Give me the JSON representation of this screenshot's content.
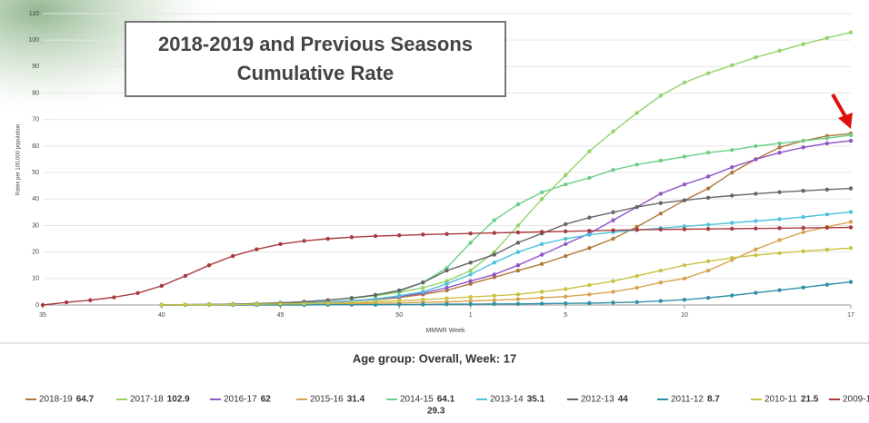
{
  "chart_data": {
    "type": "line",
    "title": [
      "2018-2019 and Previous Seasons",
      "Cumulative Rate"
    ],
    "subtitle": "Age group: Overall, Week: 17",
    "x_label": "MMWR Week",
    "y_label": "Rates per 100,000 population",
    "categories": [
      "35",
      null,
      null,
      null,
      null,
      "40",
      null,
      null,
      null,
      null,
      "45",
      null,
      null,
      null,
      null,
      "50",
      null,
      null,
      "1",
      null,
      null,
      null,
      "5",
      null,
      null,
      null,
      null,
      "10",
      null,
      null,
      null,
      null,
      null,
      null,
      "17"
    ],
    "ylim": [
      0,
      110
    ],
    "yticks": [
      0,
      10,
      20,
      30,
      40,
      50,
      60,
      70,
      80,
      90,
      100,
      110
    ],
    "grid": true,
    "series": [
      {
        "name": "2018-19",
        "color": "#b0783a",
        "values": [
          null,
          null,
          null,
          null,
          null,
          0,
          0.1,
          0.2,
          0.3,
          0.4,
          0.6,
          0.8,
          1.1,
          1.5,
          2,
          2.8,
          4,
          5.5,
          8,
          10.5,
          13,
          15.5,
          18.5,
          21.5,
          25,
          29.5,
          34.5,
          39.5,
          44,
          50,
          55,
          59.5,
          62,
          63.8,
          64.7
        ]
      },
      {
        "name": "2017-18",
        "color": "#94d46a",
        "values": [
          null,
          null,
          null,
          null,
          null,
          0,
          0.1,
          0.2,
          0.3,
          0.5,
          0.8,
          1.2,
          1.8,
          2.6,
          3.5,
          4.8,
          6.5,
          9,
          13,
          20,
          30,
          40,
          49,
          58,
          65.5,
          72.5,
          79,
          84,
          87.5,
          90.5,
          93.5,
          96,
          98.5,
          100.8,
          102.9
        ]
      },
      {
        "name": "2016-17",
        "color": "#9055c8",
        "values": [
          null,
          null,
          null,
          null,
          null,
          0,
          0.1,
          0.2,
          0.3,
          0.4,
          0.6,
          0.8,
          1.1,
          1.6,
          2.3,
          3.2,
          4.5,
          6.5,
          9,
          11.5,
          15,
          19,
          23,
          27,
          32,
          37,
          42,
          45.5,
          48.5,
          52,
          55,
          57.5,
          59.5,
          61,
          62
        ]
      },
      {
        "name": "2015-16",
        "color": "#d9a24e",
        "values": [
          null,
          null,
          null,
          null,
          null,
          0,
          0,
          0.1,
          0.1,
          0.2,
          0.2,
          0.3,
          0.4,
          0.5,
          0.6,
          0.8,
          1,
          1.2,
          1.5,
          1.8,
          2.2,
          2.7,
          3.2,
          4,
          5,
          6.5,
          8.5,
          10,
          13,
          17,
          21,
          24.5,
          27.5,
          29.5,
          31.4
        ]
      },
      {
        "name": "2014-15",
        "color": "#6dcf8a",
        "values": [
          null,
          null,
          null,
          null,
          null,
          0,
          0.1,
          0.2,
          0.3,
          0.5,
          0.8,
          1.2,
          1.8,
          2.7,
          3.8,
          5.2,
          8.5,
          14,
          23.5,
          32,
          38,
          42.5,
          45.5,
          48,
          51,
          53,
          54.5,
          56,
          57.5,
          58.5,
          60,
          61,
          62,
          63,
          64.1
        ]
      },
      {
        "name": "2013-14",
        "color": "#4cc3da",
        "values": [
          null,
          null,
          null,
          null,
          null,
          0,
          0.1,
          0.2,
          0.3,
          0.4,
          0.6,
          0.8,
          1,
          1.5,
          2.3,
          3.5,
          5,
          8,
          11.5,
          16,
          20,
          23,
          25,
          26.5,
          27.5,
          28.3,
          29,
          29.7,
          30.3,
          31,
          31.7,
          32.4,
          33.2,
          34.2,
          35.1
        ]
      },
      {
        "name": "2012-13",
        "color": "#666666",
        "values": [
          null,
          null,
          null,
          null,
          null,
          0,
          0.1,
          0.2,
          0.3,
          0.5,
          0.8,
          1.2,
          1.8,
          2.6,
          3.8,
          5.5,
          8.5,
          13,
          16,
          19,
          23.5,
          27,
          30.5,
          33,
          35,
          37,
          38.5,
          39.5,
          40.5,
          41.3,
          42,
          42.6,
          43.1,
          43.6,
          44
        ]
      },
      {
        "name": "2011-12",
        "color": "#2f8fa8",
        "values": [
          null,
          null,
          null,
          null,
          null,
          0,
          0,
          0,
          0,
          0,
          0,
          0,
          0.1,
          0.1,
          0.1,
          0.2,
          0.2,
          0.3,
          0.3,
          0.4,
          0.4,
          0.5,
          0.6,
          0.7,
          0.9,
          1.1,
          1.5,
          2,
          2.7,
          3.6,
          4.6,
          5.6,
          6.6,
          7.7,
          8.7
        ]
      },
      {
        "name": "2010-11",
        "color": "#c9c244",
        "values": [
          null,
          null,
          null,
          null,
          null,
          0,
          0.1,
          0.1,
          0.2,
          0.3,
          0.4,
          0.5,
          0.7,
          0.9,
          1.2,
          1.6,
          2,
          2.5,
          3,
          3.5,
          4,
          5,
          6,
          7.5,
          9,
          11,
          13,
          15,
          16.5,
          17.8,
          18.8,
          19.6,
          20.3,
          20.9,
          21.5
        ]
      },
      {
        "name": "2009-10",
        "color": "#a83a3e",
        "values": [
          0,
          1,
          1.8,
          2.9,
          4.5,
          7.2,
          11,
          15,
          18.5,
          21,
          23,
          24.2,
          25,
          25.6,
          26,
          26.3,
          26.6,
          26.8,
          27,
          27.2,
          27.4,
          27.6,
          27.8,
          28,
          28.2,
          28.4,
          28.5,
          28.6,
          28.7,
          28.8,
          28.9,
          29,
          29.1,
          29.2,
          29.3
        ]
      }
    ]
  }
}
